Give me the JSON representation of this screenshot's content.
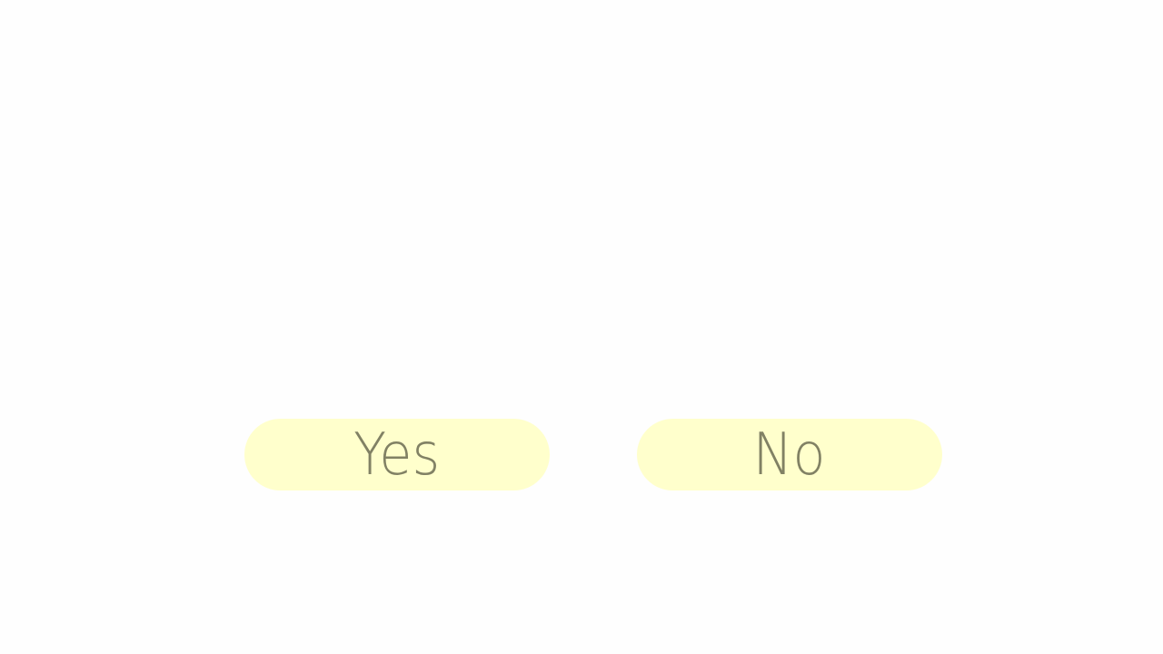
{
  "dialog": {
    "yes_label": "Yes",
    "no_label": "No"
  },
  "colors": {
    "background": "#fefefe",
    "button_fill": "#ffffcc",
    "button_text": "#818164"
  }
}
